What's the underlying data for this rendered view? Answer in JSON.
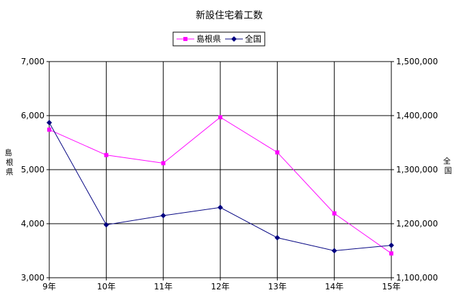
{
  "chart_data": {
    "type": "line",
    "title": "新設住宅着工数",
    "categories": [
      "9年",
      "10年",
      "11年",
      "12年",
      "13年",
      "14年",
      "15年"
    ],
    "series": [
      {
        "name": "島根県",
        "axis": "left",
        "color": "#ff00ff",
        "marker": "square",
        "values": [
          5740,
          5270,
          5120,
          5970,
          5320,
          4190,
          3450
        ]
      },
      {
        "name": "全国",
        "axis": "right",
        "color": "#000080",
        "marker": "diamond",
        "values": [
          1387000,
          1198000,
          1215000,
          1230000,
          1174000,
          1150000,
          1160000
        ]
      }
    ],
    "y_left": {
      "label": "島根県",
      "min": 3000,
      "max": 7000,
      "step": 1000,
      "ticks": [
        "3,000",
        "4,000",
        "5,000",
        "6,000",
        "7,000"
      ]
    },
    "y_right": {
      "label": "全国",
      "min": 1100000,
      "max": 1500000,
      "step": 100000,
      "ticks": [
        "1,100,000",
        "1,200,000",
        "1,300,000",
        "1,400,000",
        "1,500,000"
      ]
    },
    "grid": true,
    "legend_position": "top-center"
  }
}
